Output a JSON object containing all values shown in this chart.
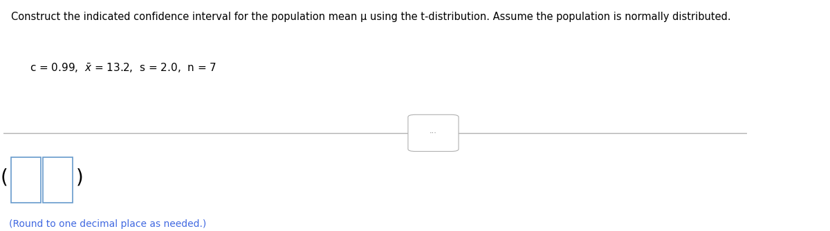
{
  "title_line": "Construct the indicated confidence interval for the population mean μ using the t-distribution. Assume the population is normally distributed.",
  "round_note": "(Round to one decimal place as needed.)",
  "title_fontsize": 10.5,
  "params_fontsize": 11,
  "note_fontsize": 10,
  "bg_color": "#ffffff",
  "text_color": "#000000",
  "blue_color": "#4169E1",
  "divider_color": "#b0b0b0",
  "box_color": "#6699cc",
  "btn_color": "#d0d0d0"
}
